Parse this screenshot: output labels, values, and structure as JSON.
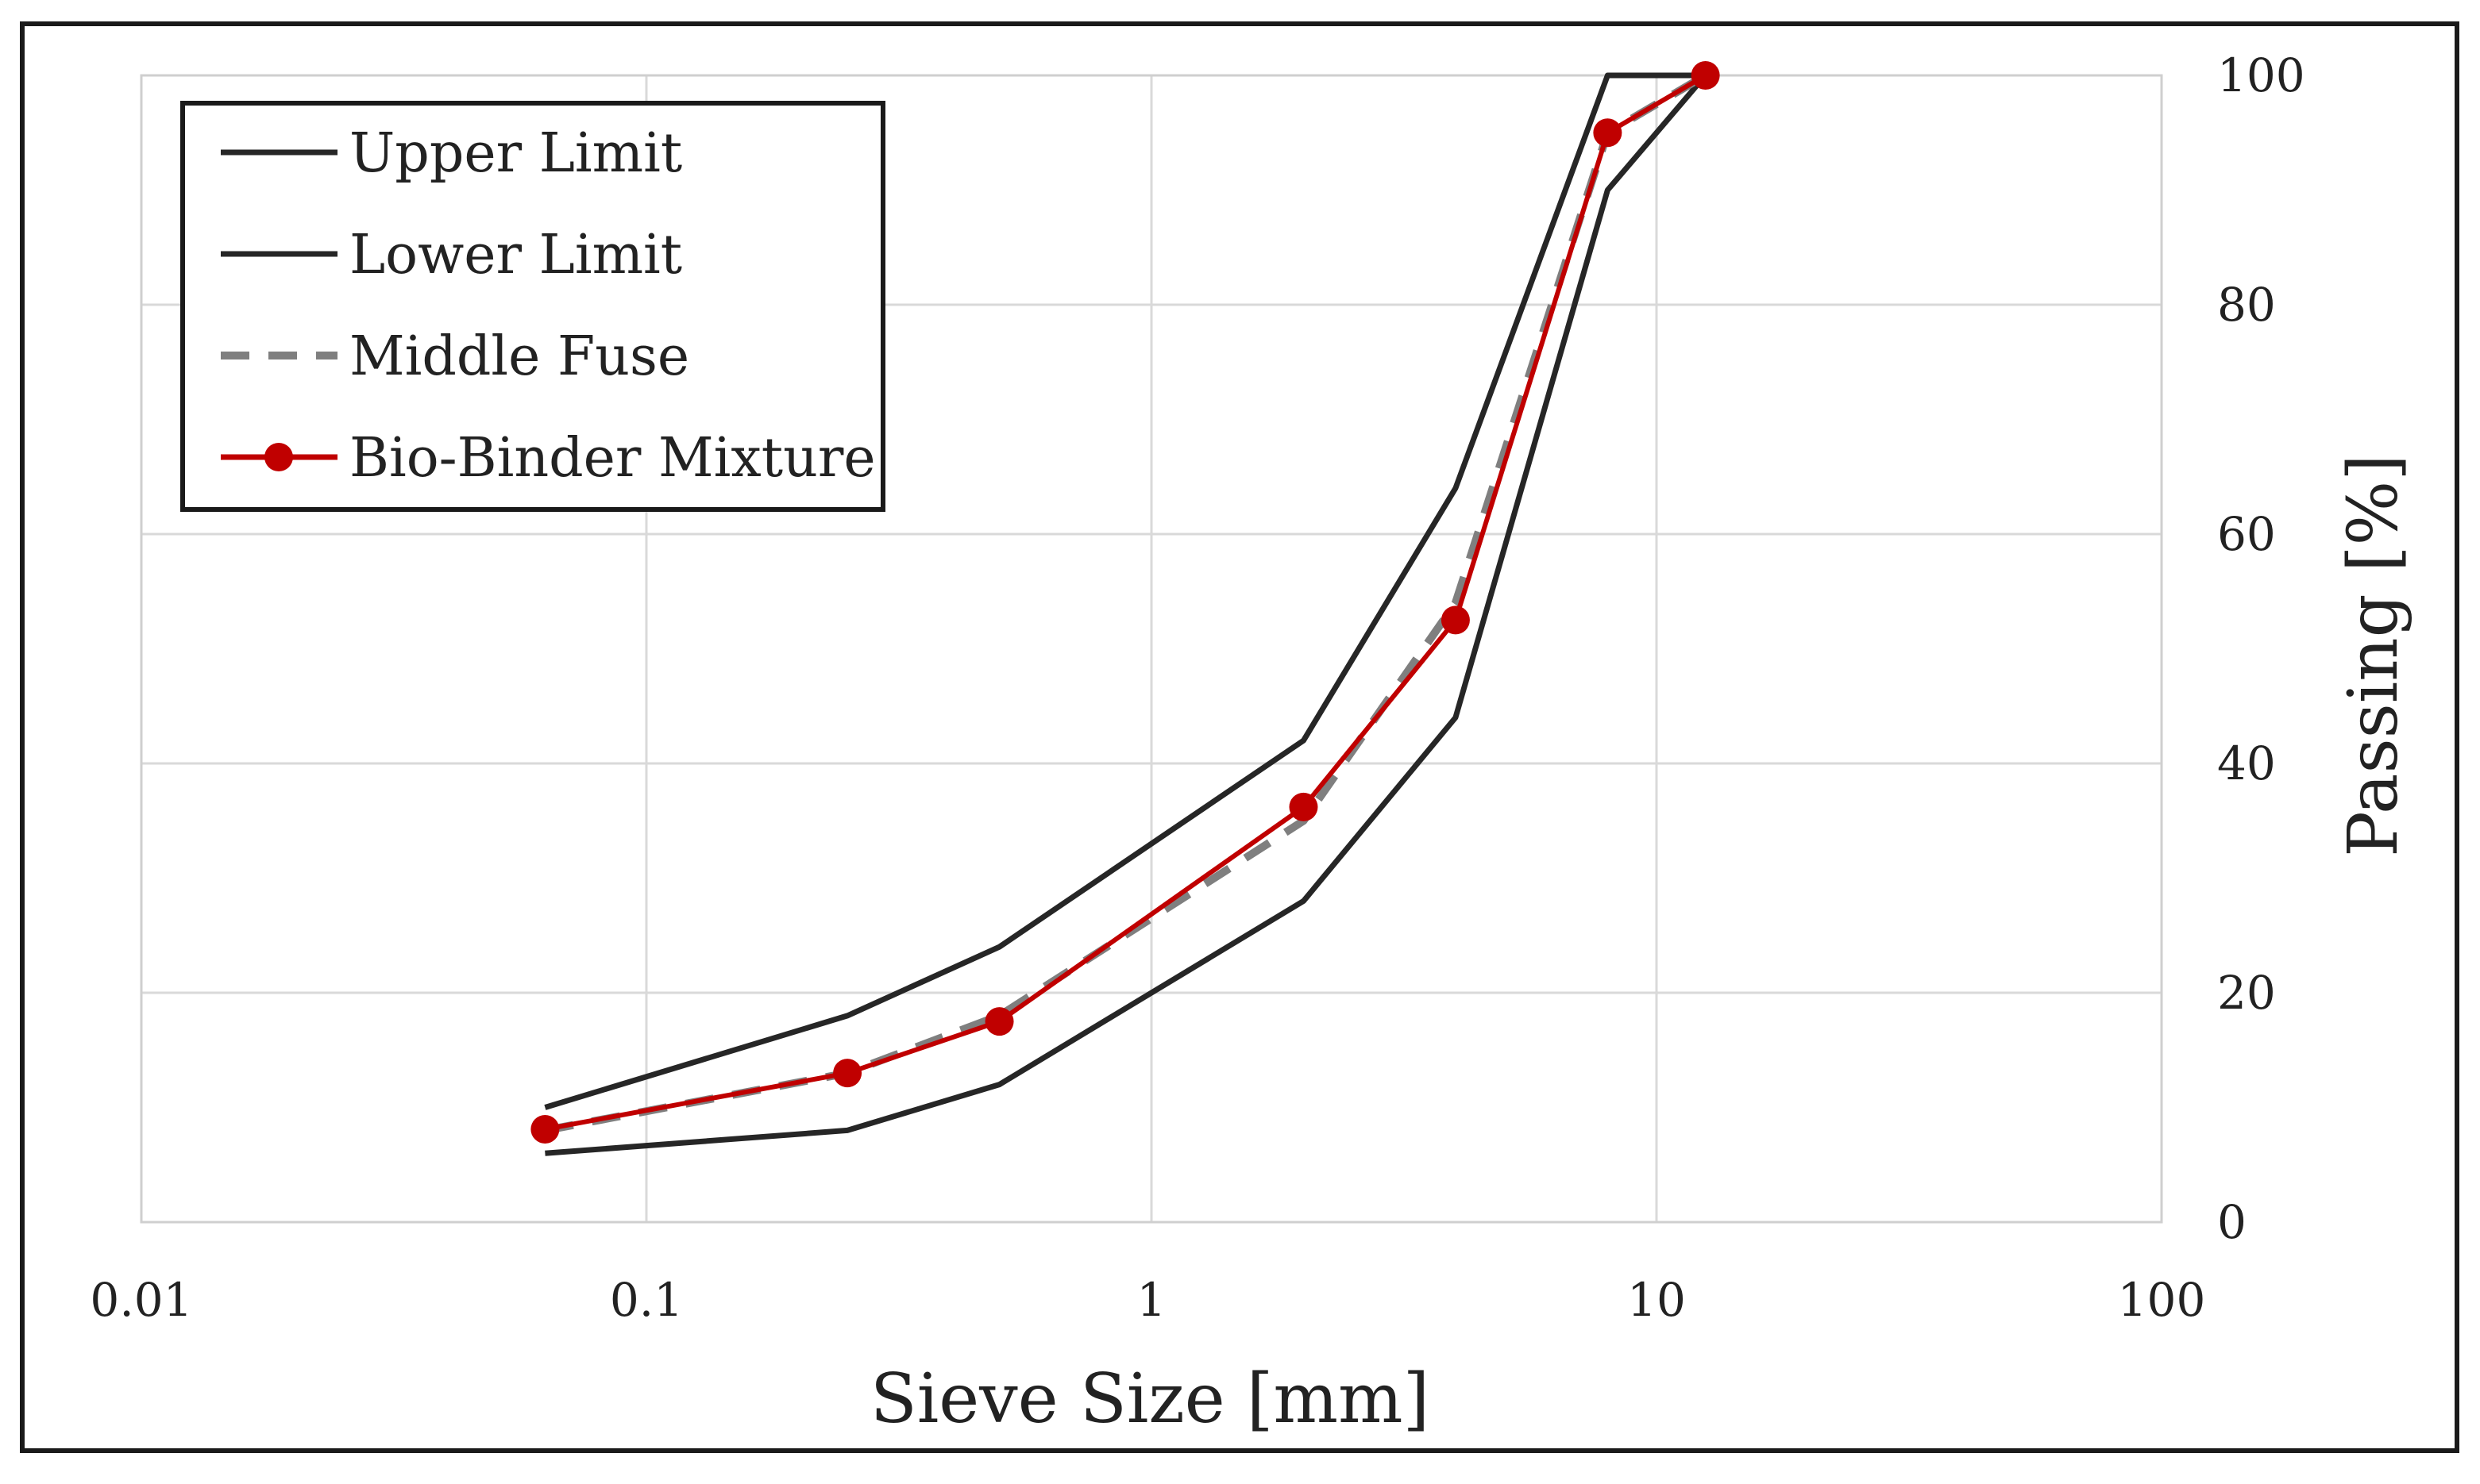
{
  "colors": {
    "limits": "#262626",
    "middle": "#7f7f7f",
    "mixture": "#c00000",
    "grid": "#d9d9d9",
    "frame": "#1a1a1a"
  },
  "chart_data": {
    "type": "line",
    "xscale": "log",
    "xlabel": "Sieve Size [mm]",
    "ylabel": "Passing [%]",
    "xlim": [
      0.01,
      100
    ],
    "ylim": [
      0,
      100
    ],
    "xticks": [
      "0.01",
      "0.1",
      "1",
      "10",
      "100"
    ],
    "yticks": [
      "0",
      "20",
      "40",
      "60",
      "80",
      "100"
    ],
    "yaxis_position": "right",
    "grid": true,
    "legend_position": "top-left",
    "series": [
      {
        "name": "Upper Limit",
        "style": "solid",
        "x": [
          0.063,
          0.25,
          0.5,
          2,
          4,
          8,
          12.5
        ],
        "y": [
          10,
          18,
          24,
          42,
          64,
          100,
          100
        ]
      },
      {
        "name": "Lower Limit",
        "style": "solid",
        "x": [
          0.063,
          0.25,
          0.5,
          2,
          4,
          8,
          12.5
        ],
        "y": [
          6,
          8,
          12,
          28,
          44,
          90,
          100
        ]
      },
      {
        "name": "Middle Fuse",
        "style": "dashed",
        "x": [
          0.063,
          0.25,
          0.5,
          2,
          4,
          8,
          12.5
        ],
        "y": [
          8,
          13,
          18,
          35,
          54,
          95,
          100
        ]
      },
      {
        "name": "Bio-Binder Mixture",
        "style": "solid-markers",
        "x": [
          0.063,
          0.25,
          0.5,
          2,
          4,
          8,
          12.5
        ],
        "y": [
          8.1,
          13,
          17.5,
          36.2,
          52.5,
          95,
          100
        ]
      }
    ]
  }
}
